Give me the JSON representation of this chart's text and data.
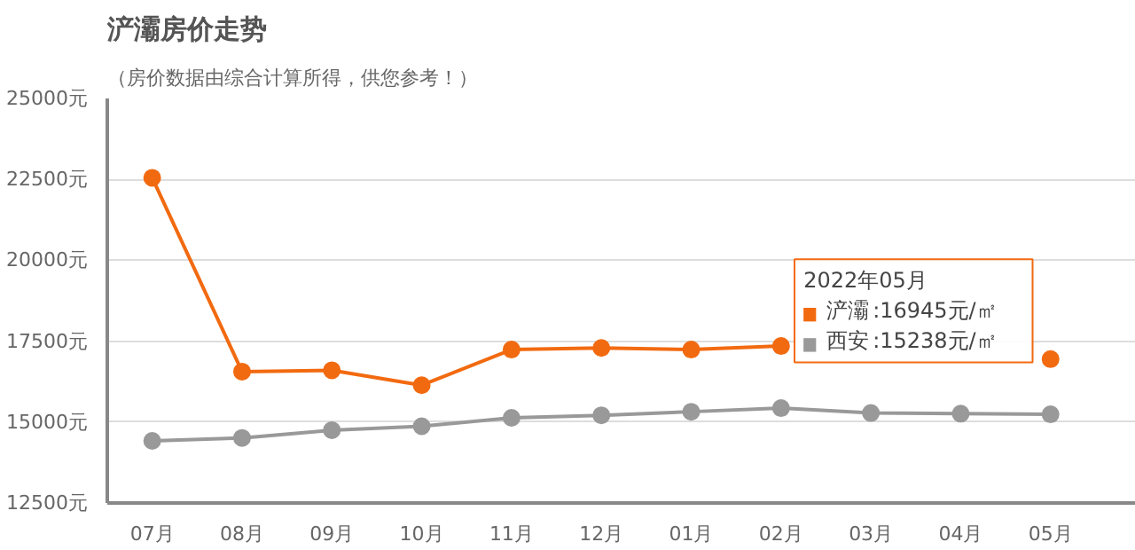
{
  "chart_data": {
    "type": "line",
    "title": "浐灞房价走势",
    "subtitle": "（房价数据由综合计算所得，供您参考！）",
    "categories": [
      "07月",
      "08月",
      "09月",
      "10月",
      "11月",
      "12月",
      "01月",
      "02月",
      "03月",
      "04月",
      "05月"
    ],
    "series": [
      {
        "name": "浐灞",
        "color": "#f26a10",
        "values": [
          22550,
          16560,
          16600,
          16140,
          17240,
          17290,
          17240,
          17350,
          null,
          null,
          16945
        ]
      },
      {
        "name": "西安",
        "color": "#999999",
        "values": [
          14420,
          14510,
          14750,
          14870,
          15130,
          15210,
          15320,
          15430,
          15280,
          15260,
          15238
        ]
      }
    ],
    "ylim": [
      12500,
      25000
    ],
    "yticks": [
      {
        "value": 12500,
        "label": "12500元"
      },
      {
        "value": 15000,
        "label": "15000元"
      },
      {
        "value": 17500,
        "label": "17500元"
      },
      {
        "value": 20000,
        "label": "20000元"
      },
      {
        "value": 22500,
        "label": "22500元"
      },
      {
        "value": 25000,
        "label": "25000元"
      }
    ],
    "grid": "y",
    "marker": "circle",
    "legend": "right",
    "annotations": [
      "2022年05月",
      ":16945元/㎡",
      ":15238元/㎡"
    ]
  }
}
